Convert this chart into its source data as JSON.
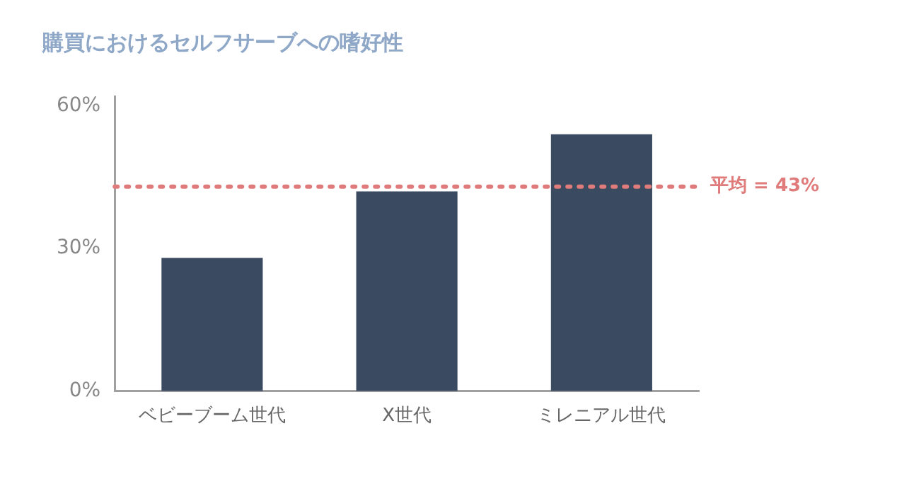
{
  "chart_data": {
    "type": "bar",
    "title": "購買におけるセルフサーブへの嗜好性",
    "categories": [
      "ベビーブーム世代",
      "X世代",
      "ミレニアル世代"
    ],
    "values": [
      28,
      42,
      54
    ],
    "color": "#3a4a60",
    "ylim": [
      0,
      62
    ],
    "yticks": [
      {
        "value": 0,
        "label": "0%"
      },
      {
        "value": 30,
        "label": "30%"
      },
      {
        "value": 60,
        "label": "60%"
      }
    ],
    "grid": false,
    "legend": false,
    "ref_lines": [
      {
        "axis": "y",
        "value": 43,
        "label": "平均 = 43%",
        "color": "#e07b7b",
        "line_style": "dotted"
      }
    ]
  }
}
